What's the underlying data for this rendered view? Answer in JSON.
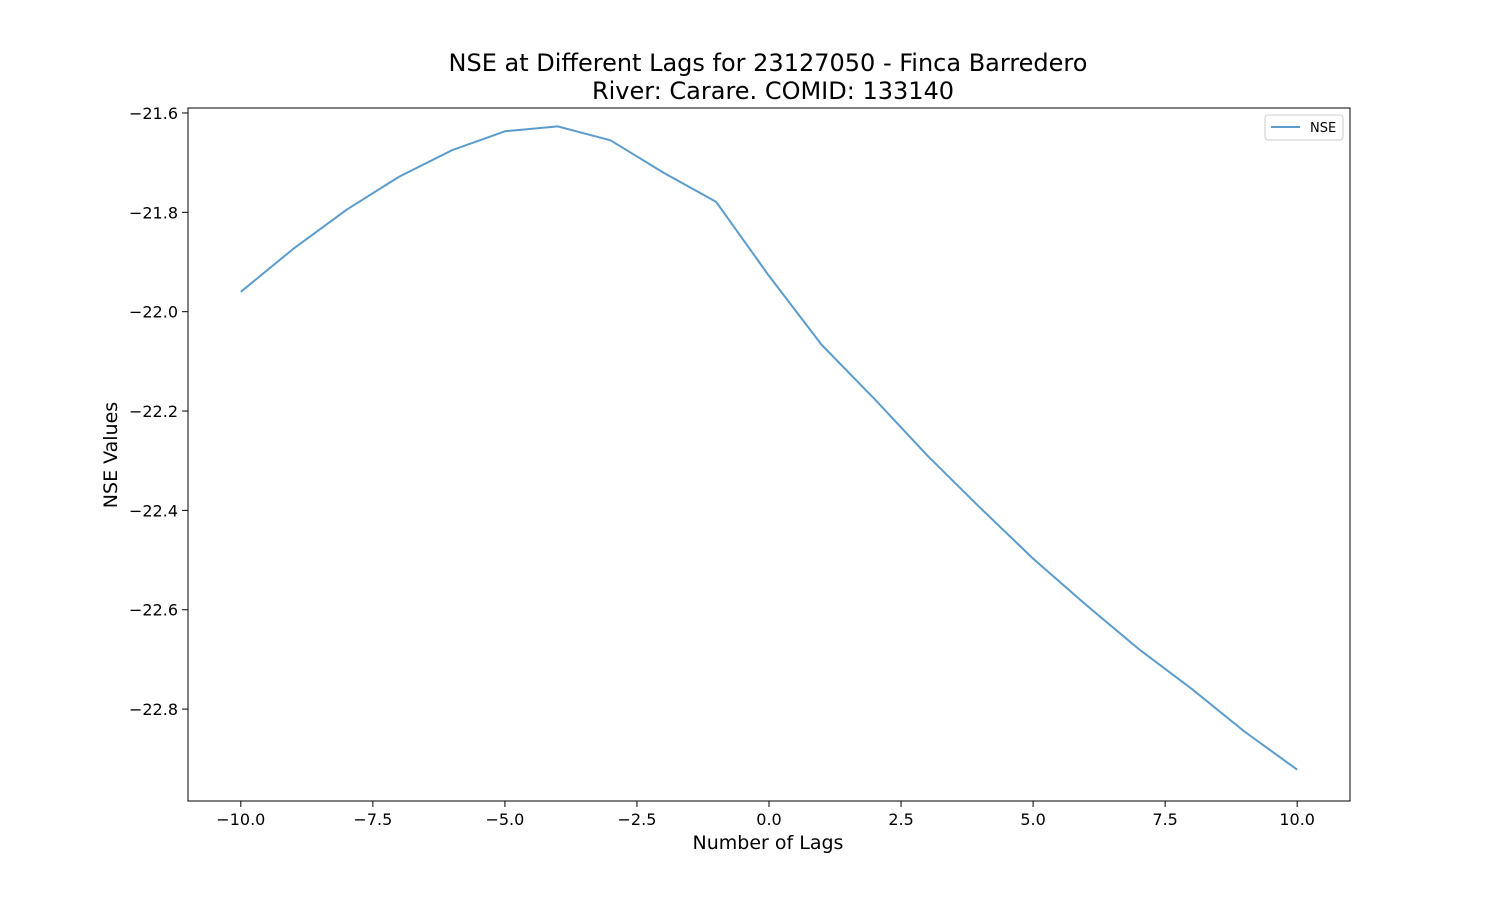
{
  "chart_data": {
    "type": "line",
    "title_lines": [
      "NSE at Different Lags for 23127050 - Finca Barredero",
      "River: Carare. COMID: 133140"
    ],
    "xlabel": "Number of Lags",
    "ylabel": "NSE Values",
    "xlim": [
      -11,
      11
    ],
    "ylim": [
      -22.985,
      -21.59
    ],
    "x_ticks": [
      -10.0,
      -7.5,
      -5.0,
      -2.5,
      0.0,
      2.5,
      5.0,
      7.5,
      10.0
    ],
    "x_tick_labels": [
      "−10.0",
      "−7.5",
      "−5.0",
      "−2.5",
      "0.0",
      "2.5",
      "5.0",
      "7.5",
      "10.0"
    ],
    "y_ticks": [
      -21.6,
      -21.8,
      -22.0,
      -22.2,
      -22.4,
      -22.6,
      -22.8
    ],
    "y_tick_labels": [
      "−21.6",
      "−21.8",
      "−22.0",
      "−22.2",
      "−22.4",
      "−22.6",
      "−22.8"
    ],
    "legend_position": "top-right",
    "grid": false,
    "series": [
      {
        "name": "NSE",
        "color": "#5b9ccc",
        "x": [
          -10,
          -9,
          -8,
          -7,
          -6,
          -5,
          -4,
          -3,
          -2,
          -1,
          0,
          1,
          2,
          3,
          4,
          5,
          6,
          7,
          8,
          9,
          10
        ],
        "y": [
          -21.96,
          -21.873,
          -21.795,
          -21.728,
          -21.675,
          -21.637,
          -21.627,
          -21.655,
          -21.72,
          -21.779,
          -21.928,
          -22.067,
          -22.176,
          -22.29,
          -22.395,
          -22.497,
          -22.59,
          -22.679,
          -22.759,
          -22.845,
          -22.922
        ]
      }
    ]
  }
}
